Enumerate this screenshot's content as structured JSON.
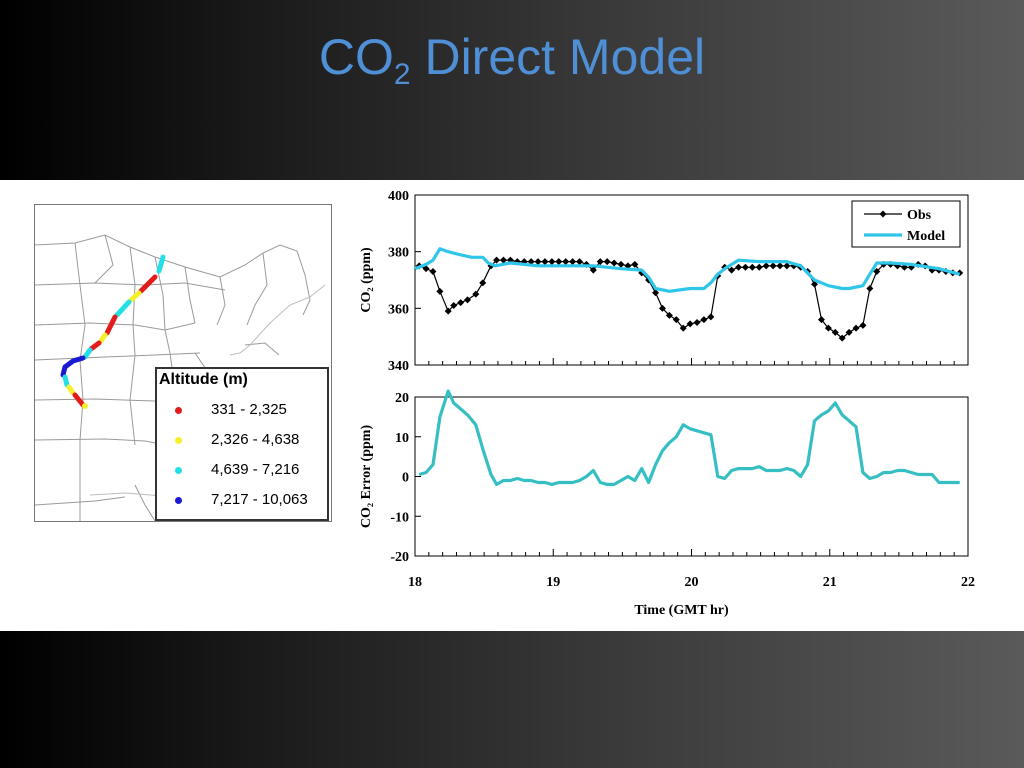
{
  "slide": {
    "title_main": "CO",
    "title_sub": "2",
    "title_rest": " Direct Model"
  },
  "map": {
    "legend_title": "Altitude (m)",
    "legend": [
      {
        "label": "331 - 2,325",
        "color": "#e21b1b"
      },
      {
        "label": "2,326 - 4,638",
        "color": "#f6f02a"
      },
      {
        "label": "4,639 - 7,216",
        "color": "#22e0e6"
      },
      {
        "label": "7,217 - 10,063",
        "color": "#1a1ad0"
      }
    ]
  },
  "chart_data": [
    {
      "type": "line",
      "ylabel": "CO₂ (ppm)",
      "xlim": [
        18,
        22
      ],
      "ylim": [
        340,
        400
      ],
      "yticks": [
        340,
        360,
        380,
        400
      ],
      "legend_position": "top-right",
      "series": [
        {
          "name": "Obs",
          "color": "#000000",
          "marker": "diamond",
          "x": [
            18.03,
            18.08,
            18.13,
            18.18,
            18.24,
            18.28,
            18.33,
            18.38,
            18.44,
            18.49,
            18.55,
            18.59,
            18.64,
            18.69,
            18.74,
            18.79,
            18.84,
            18.89,
            18.94,
            18.99,
            19.04,
            19.09,
            19.14,
            19.19,
            19.24,
            19.29,
            19.34,
            19.39,
            19.44,
            19.49,
            19.54,
            19.59,
            19.64,
            19.69,
            19.74,
            19.79,
            19.84,
            19.89,
            19.94,
            19.99,
            20.04,
            20.09,
            20.14,
            20.19,
            20.24,
            20.29,
            20.34,
            20.39,
            20.44,
            20.49,
            20.54,
            20.59,
            20.64,
            20.69,
            20.74,
            20.79,
            20.84,
            20.89,
            20.94,
            20.99,
            21.04,
            21.09,
            21.14,
            21.19,
            21.24,
            21.29,
            21.34,
            21.39,
            21.44,
            21.49,
            21.54,
            21.59,
            21.64,
            21.69,
            21.74,
            21.79,
            21.84,
            21.89,
            21.94
          ],
          "y": [
            375,
            374,
            373,
            366,
            359,
            361,
            362,
            363,
            365,
            369,
            375,
            377,
            377,
            377,
            376.5,
            376.5,
            376.5,
            376.5,
            376.5,
            376.5,
            376.5,
            376.5,
            376.5,
            376.5,
            375.5,
            373.5,
            376.5,
            376.5,
            376,
            375.5,
            375,
            375.5,
            372.5,
            370,
            365.5,
            360,
            357.5,
            356,
            353,
            354.5,
            355,
            356,
            357,
            371.5,
            374.5,
            373.5,
            374.5,
            374.5,
            374.5,
            374.5,
            375,
            375,
            375,
            375,
            375,
            374.5,
            373,
            368.5,
            356,
            353,
            351.5,
            349.5,
            351.5,
            353,
            354,
            367,
            373,
            375.5,
            375.5,
            375,
            374.5,
            374.5,
            375.5,
            375,
            373.5,
            373.5,
            373,
            372.5,
            372.5
          ]
        },
        {
          "name": "Model",
          "color": "#2fc6ea",
          "x": [
            18.0,
            18.08,
            18.13,
            18.18,
            18.24,
            18.32,
            18.41,
            18.49,
            18.53,
            18.58,
            18.69,
            18.89,
            19.09,
            19.29,
            19.49,
            19.64,
            19.69,
            19.74,
            19.84,
            19.99,
            20.09,
            20.14,
            20.19,
            20.24,
            20.34,
            20.49,
            20.69,
            20.79,
            20.89,
            20.99,
            21.09,
            21.14,
            21.24,
            21.29,
            21.34,
            21.44,
            21.59,
            21.79,
            21.94
          ],
          "y": [
            374,
            375.5,
            377,
            381,
            380,
            379,
            378,
            378,
            376,
            375,
            376,
            375,
            375,
            375,
            374,
            373.5,
            371,
            367,
            366,
            367,
            367,
            369,
            372,
            374,
            377,
            376.5,
            376.5,
            375,
            370,
            368,
            367,
            367,
            368,
            372,
            376,
            376,
            375.5,
            374,
            372
          ]
        }
      ]
    },
    {
      "type": "line",
      "xlabel": "Time (GMT hr)",
      "ylabel": "CO₂ Error (ppm)",
      "xlim": [
        18,
        22
      ],
      "ylim": [
        -20,
        20
      ],
      "xticks": [
        18,
        19,
        20,
        21,
        22
      ],
      "yticks": [
        -20,
        -10,
        0,
        10,
        20
      ],
      "series": [
        {
          "color": "#36bfc3",
          "x": [
            18.03,
            18.08,
            18.13,
            18.18,
            18.24,
            18.28,
            18.33,
            18.38,
            18.44,
            18.49,
            18.55,
            18.59,
            18.64,
            18.69,
            18.74,
            18.79,
            18.84,
            18.89,
            18.94,
            18.99,
            19.04,
            19.09,
            19.14,
            19.19,
            19.24,
            19.29,
            19.34,
            19.39,
            19.44,
            19.49,
            19.54,
            19.59,
            19.64,
            19.69,
            19.74,
            19.79,
            19.84,
            19.89,
            19.94,
            19.99,
            20.04,
            20.09,
            20.14,
            20.19,
            20.24,
            20.29,
            20.34,
            20.39,
            20.44,
            20.49,
            20.54,
            20.59,
            20.64,
            20.69,
            20.74,
            20.79,
            20.84,
            20.89,
            20.94,
            20.99,
            21.04,
            21.09,
            21.14,
            21.19,
            21.24,
            21.29,
            21.34,
            21.39,
            21.44,
            21.49,
            21.54,
            21.59,
            21.64,
            21.69,
            21.74,
            21.79,
            21.84,
            21.89,
            21.94
          ],
          "y": [
            0.5,
            1,
            3,
            15,
            21.5,
            18.5,
            17,
            15.5,
            13,
            7,
            0.5,
            -2,
            -1,
            -1,
            -0.5,
            -1,
            -1,
            -1.5,
            -1.5,
            -2,
            -1.5,
            -1.5,
            -1.5,
            -1,
            0,
            1.5,
            -1.5,
            -2,
            -2,
            -1,
            0,
            -1,
            2,
            -1.5,
            3,
            6.5,
            8.5,
            10,
            13,
            12,
            11.5,
            11,
            10.5,
            0,
            -0.5,
            1.5,
            2,
            2,
            2,
            2.5,
            1.5,
            1.5,
            1.5,
            2,
            1.5,
            0,
            3,
            14,
            15.5,
            16.5,
            18.5,
            15.5,
            14,
            12.5,
            1,
            -0.5,
            0,
            1,
            1,
            1.5,
            1.5,
            1,
            0.5,
            0.5,
            0.5,
            -1.5,
            -1.5,
            -1.5,
            -1.5
          ]
        }
      ]
    }
  ]
}
